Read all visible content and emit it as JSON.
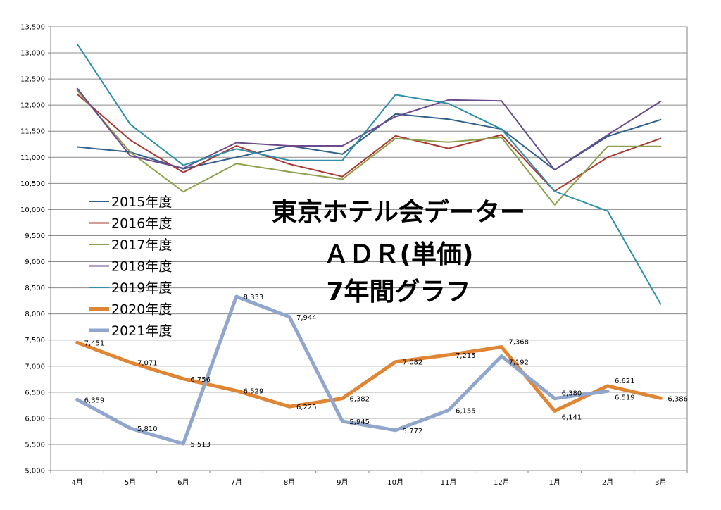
{
  "chart_data": {
    "type": "line",
    "title_lines": [
      "東京ホテル会データー",
      "ＡＤＲ(単価)",
      "7年間グラフ"
    ],
    "categories": [
      "4月",
      "5月",
      "6月",
      "7月",
      "8月",
      "9月",
      "10月",
      "11月",
      "12月",
      "1月",
      "2月",
      "3月"
    ],
    "ylim": [
      5000,
      13500
    ],
    "yticks": [
      5000,
      5500,
      6000,
      6500,
      7000,
      7500,
      8000,
      8500,
      9000,
      9500,
      10000,
      10500,
      11000,
      11500,
      12000,
      12500,
      13000,
      13500
    ],
    "ytick_labels": [
      "5,000",
      "5,500",
      "6,000",
      "6,500",
      "7,000",
      "7,500",
      "8,000",
      "8,500",
      "9,000",
      "9,500",
      "10,000",
      "10,500",
      "11,000",
      "11,500",
      "12,000",
      "12,500",
      "13,000",
      "13,500"
    ],
    "grid": true,
    "legend_position": "left",
    "series": [
      {
        "name": "2015年度",
        "color": "#2f5f8a",
        "values": [
          11200,
          11100,
          10780,
          11000,
          11220,
          11060,
          11830,
          11730,
          11540,
          10760,
          11400,
          11720
        ]
      },
      {
        "name": "2016年度",
        "color": "#a83a32",
        "values": [
          12210,
          11330,
          10710,
          11220,
          10870,
          10630,
          11410,
          11170,
          11430,
          10350,
          11000,
          11360
        ]
      },
      {
        "name": "2017年度",
        "color": "#8ca24a",
        "values": [
          12280,
          11100,
          10340,
          10880,
          10720,
          10580,
          11360,
          11290,
          11380,
          10090,
          11210,
          11210
        ]
      },
      {
        "name": "2018年度",
        "color": "#6a4a8c",
        "values": [
          12320,
          11030,
          10790,
          11280,
          11220,
          11220,
          11780,
          12100,
          12080,
          10760,
          11430,
          12070
        ]
      },
      {
        "name": "2019年度",
        "color": "#2e90a8",
        "values": [
          13170,
          11630,
          10850,
          11160,
          10940,
          10940,
          12200,
          12030,
          11540,
          10350,
          9970,
          8190
        ]
      },
      {
        "name": "2020年度",
        "color": "#e08534",
        "values": [
          7451,
          7071,
          6756,
          6529,
          6225,
          6382,
          7082,
          7215,
          7368,
          6141,
          6621,
          6386
        ]
      },
      {
        "name": "2021年度",
        "color": "#90a6cc",
        "values": [
          6359,
          5810,
          5513,
          8333,
          7944,
          5945,
          5772,
          6155,
          7192,
          6380,
          6519,
          null
        ]
      }
    ],
    "data_labels": {
      "2020年度": [
        "7,451",
        "7,071",
        "6,756",
        "6,529",
        "6,225",
        "6,382",
        "7,082",
        "7,215",
        "7,368",
        "6,141",
        "6,621",
        "6,386"
      ],
      "2021年度": [
        "6,359",
        "5,810",
        "5,513",
        "8,333",
        "7,944",
        "5,945",
        "5,772",
        "6,155",
        "7,192",
        "6,380",
        "6,519",
        null
      ]
    }
  }
}
